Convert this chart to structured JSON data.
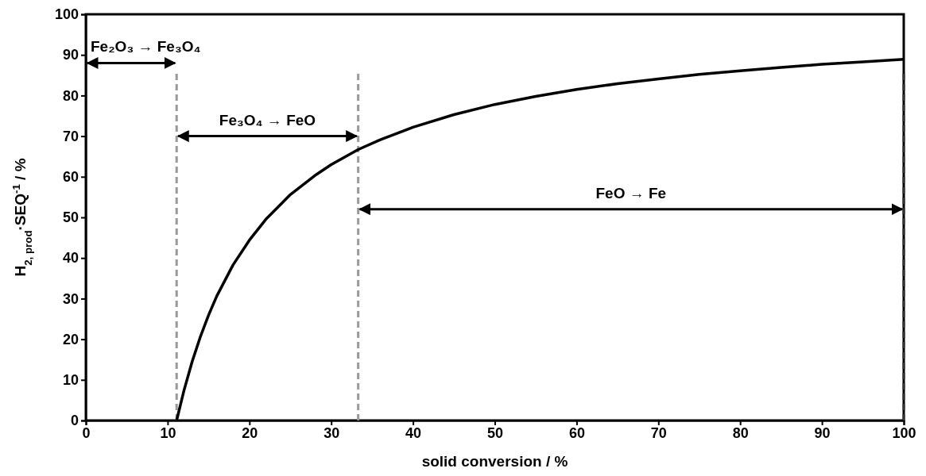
{
  "chart_data": {
    "type": "line",
    "xlabel": "solid conversion / %",
    "ylabel": "H$_{2, prod}$·SEQ$^{-1}$ / %",
    "series": [
      {
        "color": "#000000",
        "x": [
          11.1,
          12,
          13,
          14,
          15,
          16,
          18,
          20,
          22,
          25,
          28,
          30,
          33.3,
          36,
          40,
          45,
          50,
          55,
          60,
          65,
          70,
          75,
          80,
          85,
          90,
          95,
          100
        ],
        "values": [
          0,
          7.4,
          14.5,
          20.6,
          25.9,
          30.6,
          38.3,
          44.4,
          49.5,
          55.6,
          60.3,
          63.0,
          66.7,
          69.1,
          72.2,
          75.3,
          77.8,
          79.8,
          81.5,
          82.9,
          84.1,
          85.2,
          86.1,
          86.9,
          87.7,
          88.3,
          88.9
        ]
      }
    ],
    "xlim": [
      0,
      100
    ],
    "ylim": [
      0,
      100
    ],
    "xticks": [
      0,
      10,
      20,
      30,
      40,
      50,
      60,
      70,
      80,
      90,
      100
    ],
    "yticks": [
      0,
      10,
      20,
      30,
      40,
      50,
      60,
      70,
      80,
      90,
      100
    ],
    "grid": false,
    "marker": "none",
    "line_style": "solid",
    "ref_lines": [
      {
        "axis": "x",
        "value": 11.1,
        "color": "#999999",
        "line_style": "dashed"
      },
      {
        "axis": "x",
        "value": 33.3,
        "color": "#999999",
        "line_style": "dashed"
      },
      {
        "axis": "x",
        "value": 100,
        "color": "#333333",
        "line_style": "dashed"
      }
    ],
    "annotations": [
      "Fe₂O₃ → Fe₃O₄",
      "Fe₃O₄ → FeO",
      "FeO → Fe"
    ]
  }
}
